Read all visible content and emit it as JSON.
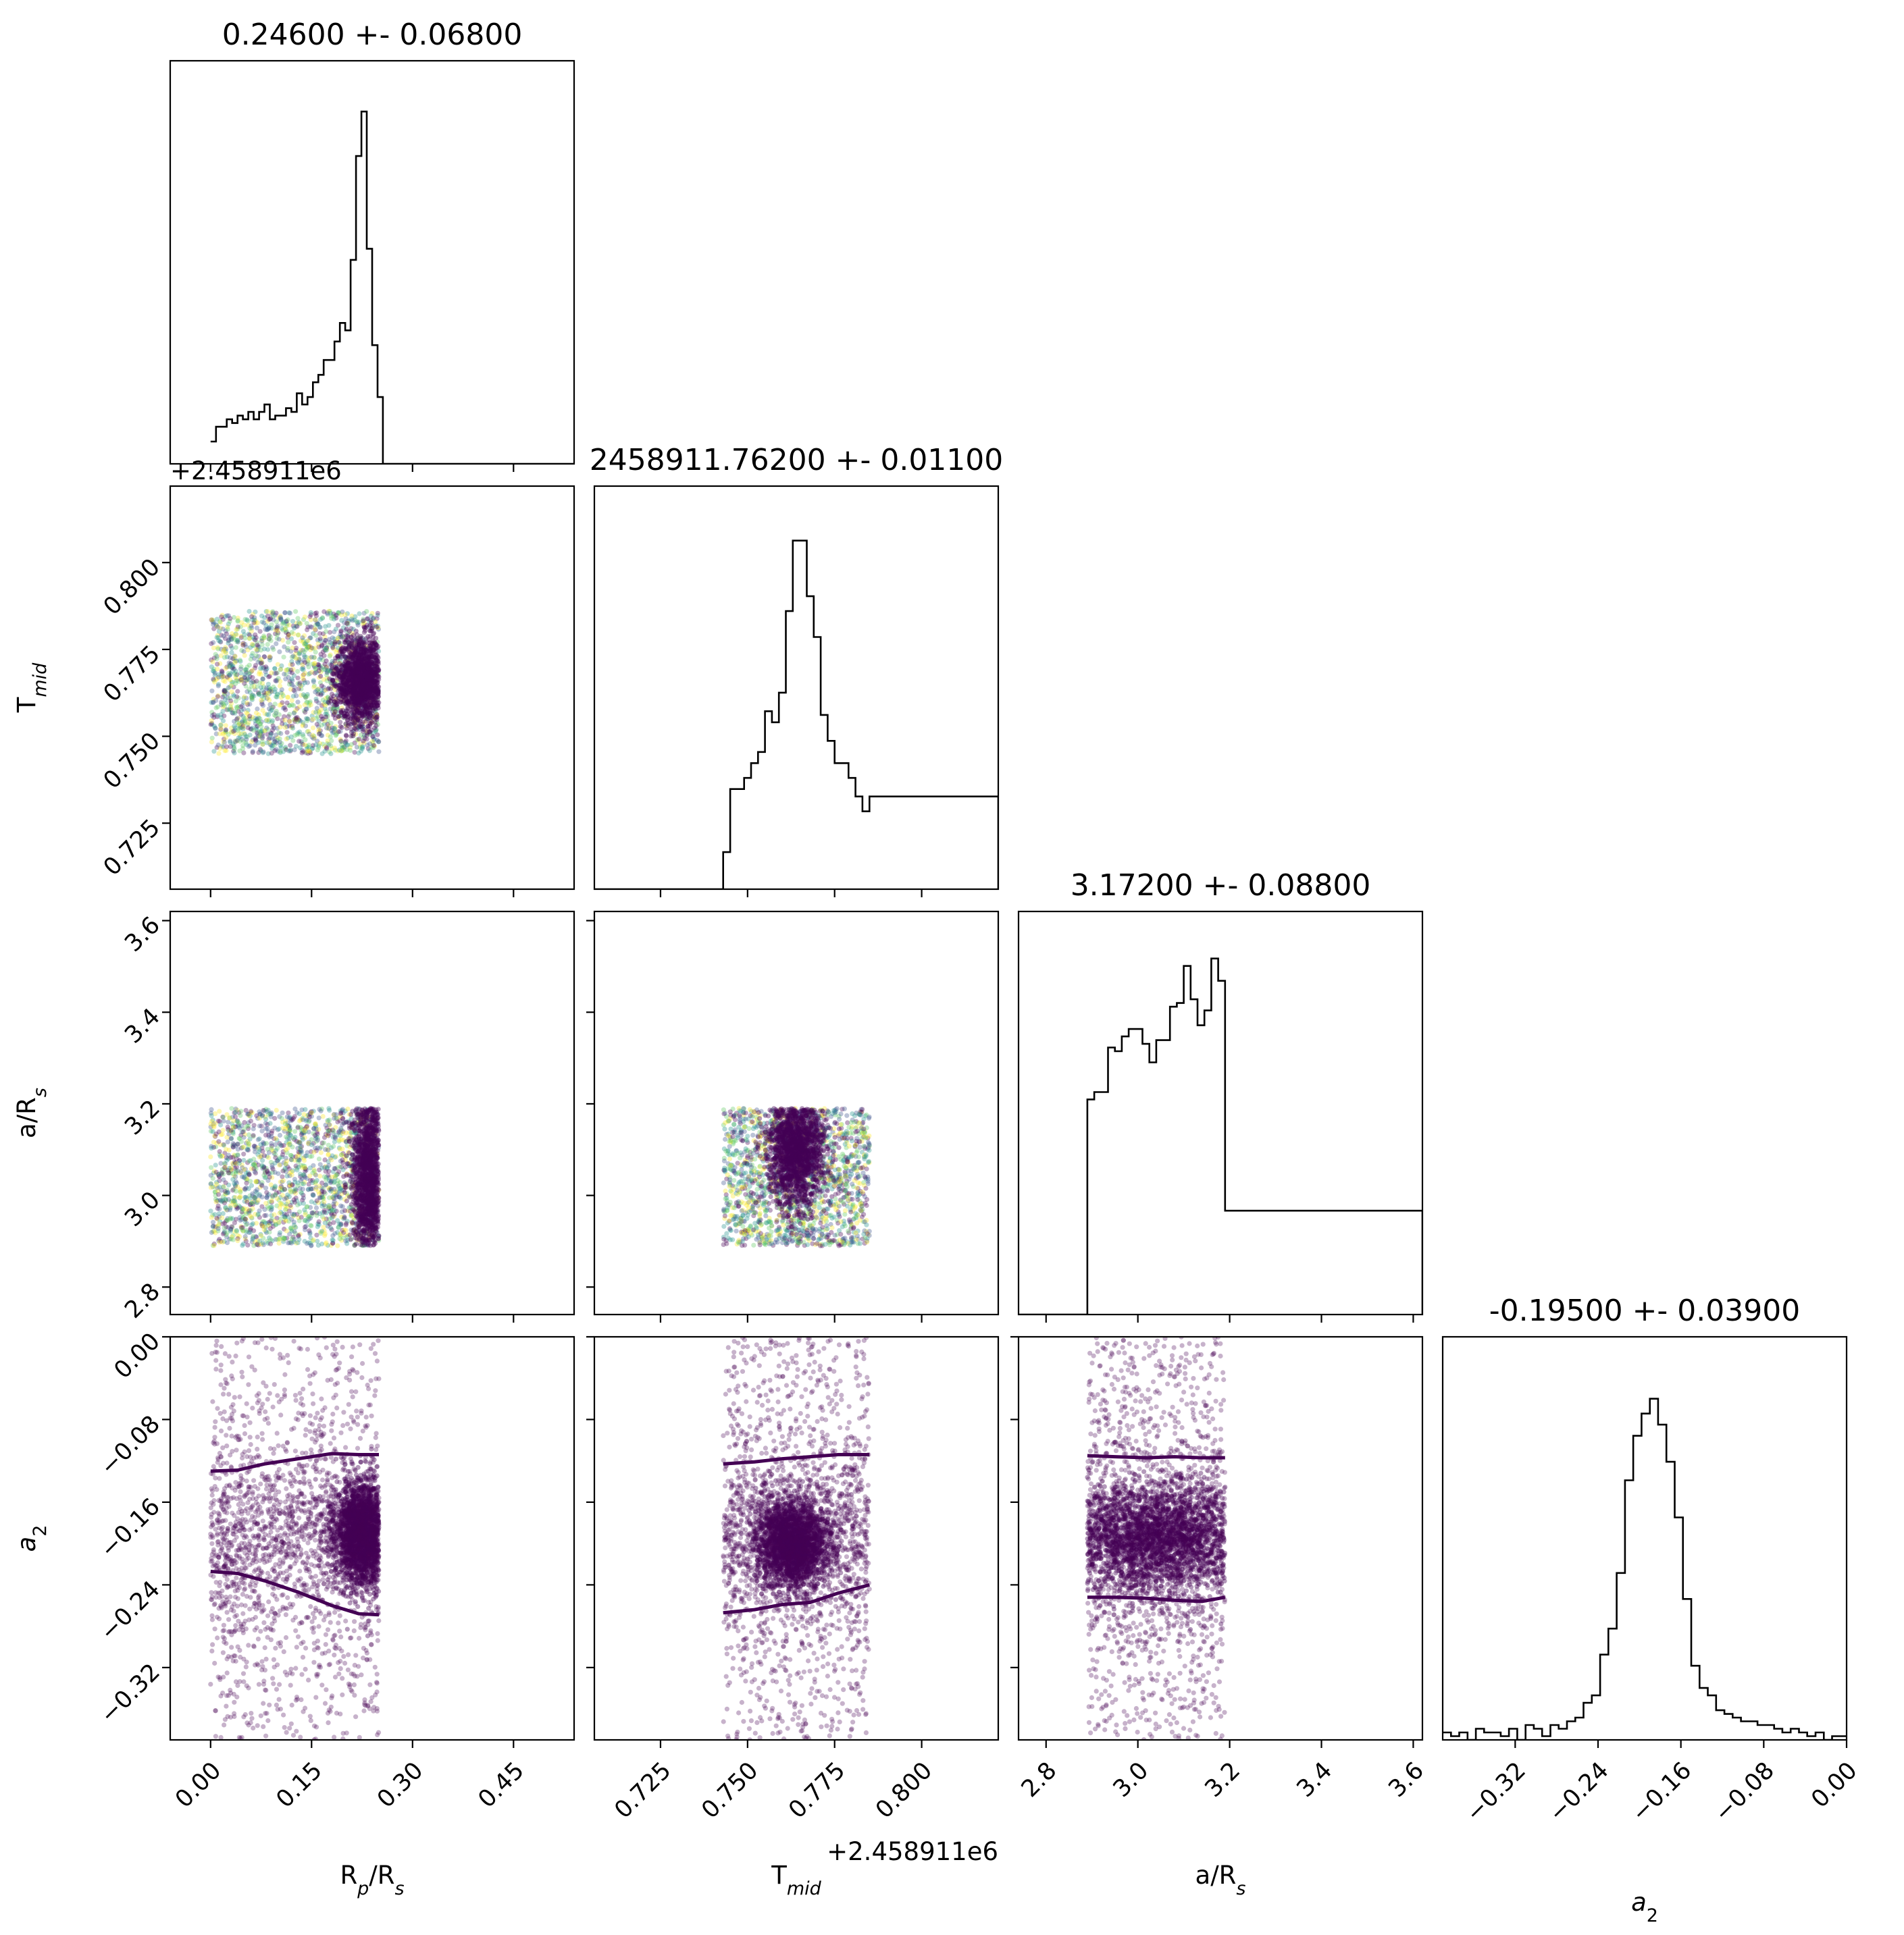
{
  "chart_data": {
    "type": "corner",
    "parameters": [
      {
        "key": "rprs",
        "label_main": "R",
        "label_sub1": "p",
        "label_mid": "/R",
        "label_sub2": "s",
        "range": [
          -0.06,
          0.54
        ],
        "ticks": [
          "0.00",
          "0.15",
          "0.30",
          "0.45"
        ],
        "tick_values": [
          0.0,
          0.15,
          0.3,
          0.45
        ]
      },
      {
        "key": "tmid",
        "label_main": "T",
        "label_sub1": "mid",
        "label_mid": "",
        "label_sub2": "",
        "range": [
          0.706,
          0.822
        ],
        "ticks": [
          "0.725",
          "0.750",
          "0.775",
          "0.800"
        ],
        "tick_values": [
          0.725,
          0.75,
          0.775,
          0.8
        ],
        "offset_text": "+2.458911e6"
      },
      {
        "key": "ars",
        "label_main": "a",
        "label_sub1": "",
        "label_mid": "/R",
        "label_sub2": "s",
        "range": [
          2.74,
          3.62
        ],
        "ticks": [
          "2.8",
          "3.0",
          "3.2",
          "3.4",
          "3.6"
        ],
        "tick_values": [
          2.8,
          3.0,
          3.2,
          3.4,
          3.6
        ]
      },
      {
        "key": "a2",
        "label_main": "a",
        "label_sub1": "2",
        "label_mid": "",
        "label_sub2": "",
        "range": [
          -0.39,
          0.0
        ],
        "ticks": [
          "−0.32",
          "−0.24",
          "−0.16",
          "−0.08",
          "0.00"
        ],
        "tick_values": [
          -0.32,
          -0.24,
          -0.16,
          -0.08,
          0.0
        ]
      }
    ],
    "titles": [
      "0.24600 +- 0.06800",
      "2458911.76200 +- 0.01100",
      "3.17200 +- 0.08800",
      "-0.19500 +- 0.03900"
    ],
    "y_offset_text": "+2.458911e6",
    "histograms": [
      {
        "param": "rprs",
        "bin_edges": [
          0.0,
          0.008,
          0.016,
          0.024,
          0.032,
          0.04,
          0.048,
          0.056,
          0.064,
          0.072,
          0.08,
          0.088,
          0.096,
          0.104,
          0.112,
          0.12,
          0.128,
          0.136,
          0.144,
          0.152,
          0.16,
          0.168,
          0.176,
          0.184,
          0.192,
          0.2,
          0.208,
          0.216,
          0.224,
          0.232,
          0.24,
          0.248,
          0.256,
          0.54
        ],
        "counts": [
          0.06,
          0.1,
          0.1,
          0.12,
          0.11,
          0.13,
          0.12,
          0.14,
          0.12,
          0.14,
          0.16,
          0.12,
          0.13,
          0.13,
          0.15,
          0.14,
          0.19,
          0.16,
          0.18,
          0.22,
          0.24,
          0.28,
          0.28,
          0.33,
          0.38,
          0.36,
          0.55,
          0.83,
          0.95,
          0.58,
          0.32,
          0.18,
          0.0
        ]
      },
      {
        "param": "tmid",
        "bin_edges": [
          0.706,
          0.743,
          0.745,
          0.747,
          0.749,
          0.751,
          0.753,
          0.755,
          0.757,
          0.759,
          0.761,
          0.763,
          0.765,
          0.767,
          0.769,
          0.771,
          0.773,
          0.775,
          0.777,
          0.779,
          0.781,
          0.783,
          0.785,
          0.822
        ],
        "counts": [
          0.0,
          0.1,
          0.27,
          0.27,
          0.3,
          0.34,
          0.37,
          0.48,
          0.45,
          0.53,
          0.75,
          0.94,
          0.94,
          0.79,
          0.68,
          0.47,
          0.4,
          0.34,
          0.34,
          0.3,
          0.25,
          0.21,
          0.25,
          0.0
        ]
      },
      {
        "param": "ars",
        "bin_edges": [
          2.74,
          2.89,
          2.905,
          2.92,
          2.935,
          2.95,
          2.965,
          2.98,
          2.995,
          3.01,
          3.025,
          3.04,
          3.055,
          3.07,
          3.085,
          3.1,
          3.115,
          3.13,
          3.145,
          3.16,
          3.175,
          3.19,
          3.62
        ],
        "counts": [
          0.0,
          0.58,
          0.6,
          0.6,
          0.72,
          0.71,
          0.75,
          0.77,
          0.77,
          0.73,
          0.68,
          0.74,
          0.74,
          0.83,
          0.84,
          0.94,
          0.85,
          0.78,
          0.82,
          0.96,
          0.9,
          0.28,
          0.0
        ]
      },
      {
        "param": "a2",
        "bin_edges": [
          -0.39,
          -0.382,
          -0.374,
          -0.366,
          -0.358,
          -0.35,
          -0.342,
          -0.334,
          -0.326,
          -0.318,
          -0.31,
          -0.302,
          -0.294,
          -0.286,
          -0.278,
          -0.27,
          -0.262,
          -0.254,
          -0.246,
          -0.238,
          -0.23,
          -0.222,
          -0.214,
          -0.206,
          -0.198,
          -0.19,
          -0.182,
          -0.174,
          -0.166,
          -0.158,
          -0.15,
          -0.142,
          -0.134,
          -0.126,
          -0.118,
          -0.11,
          -0.102,
          -0.094,
          -0.086,
          -0.078,
          -0.07,
          -0.062,
          -0.054,
          -0.046,
          -0.038,
          -0.03,
          -0.022,
          -0.014,
          -0.006,
          0.0
        ],
        "counts": [
          0.02,
          0.01,
          0.02,
          0.0,
          0.03,
          0.02,
          0.02,
          0.01,
          0.03,
          0.0,
          0.04,
          0.03,
          0.01,
          0.04,
          0.03,
          0.05,
          0.06,
          0.1,
          0.12,
          0.23,
          0.3,
          0.45,
          0.7,
          0.82,
          0.88,
          0.92,
          0.85,
          0.75,
          0.6,
          0.38,
          0.2,
          0.14,
          0.12,
          0.08,
          0.07,
          0.06,
          0.05,
          0.05,
          0.04,
          0.04,
          0.03,
          0.02,
          0.03,
          0.02,
          0.01,
          0.02,
          0.0,
          0.01,
          0.01
        ]
      }
    ],
    "scatter_panels": [
      {
        "x": "rprs",
        "y": "tmid",
        "x_range": [
          0.0,
          0.25
        ],
        "y_range": [
          0.745,
          0.786
        ],
        "dense": {
          "center_x": 0.225,
          "center_y": 0.766,
          "spread_x": 0.02,
          "spread_y": 0.006
        }
      },
      {
        "x": "rprs",
        "y": "ars",
        "x_range": [
          0.0,
          0.25
        ],
        "y_range": [
          2.89,
          3.19
        ],
        "dense": {
          "center_x": 0.235,
          "center_y": 3.04,
          "spread_x": 0.012,
          "spread_y": 0.1
        }
      },
      {
        "x": "tmid",
        "y": "ars",
        "x_range": [
          0.743,
          0.785
        ],
        "y_range": [
          2.89,
          3.19
        ],
        "dense": {
          "center_x": 0.764,
          "center_y": 3.1,
          "spread_x": 0.004,
          "spread_y": 0.06
        }
      },
      {
        "x": "rprs",
        "y": "a2",
        "x_range": [
          0.0,
          0.25
        ],
        "y_range": [
          -0.39,
          0.0
        ],
        "dense": {
          "center_x": 0.225,
          "center_y": -0.19,
          "spread_x": 0.02,
          "spread_y": 0.025
        },
        "upper_contour": [
          [
            0.0,
            -0.13
          ],
          [
            0.04,
            -0.129
          ],
          [
            0.08,
            -0.123
          ],
          [
            0.13,
            -0.118
          ],
          [
            0.18,
            -0.113
          ],
          [
            0.22,
            -0.114
          ],
          [
            0.25,
            -0.114
          ]
        ],
        "lower_contour": [
          [
            0.0,
            -0.227
          ],
          [
            0.04,
            -0.229
          ],
          [
            0.08,
            -0.236
          ],
          [
            0.13,
            -0.247
          ],
          [
            0.18,
            -0.26
          ],
          [
            0.22,
            -0.268
          ],
          [
            0.25,
            -0.269
          ]
        ]
      },
      {
        "x": "tmid",
        "y": "a2",
        "x_range": [
          0.743,
          0.785
        ],
        "y_range": [
          -0.39,
          0.0
        ],
        "dense": {
          "center_x": 0.763,
          "center_y": -0.2,
          "spread_x": 0.005,
          "spread_y": 0.02
        },
        "upper_contour": [
          [
            0.743,
            -0.123
          ],
          [
            0.752,
            -0.121
          ],
          [
            0.76,
            -0.118
          ],
          [
            0.768,
            -0.116
          ],
          [
            0.776,
            -0.114
          ],
          [
            0.785,
            -0.114
          ]
        ],
        "lower_contour": [
          [
            0.743,
            -0.267
          ],
          [
            0.752,
            -0.264
          ],
          [
            0.76,
            -0.259
          ],
          [
            0.768,
            -0.257
          ],
          [
            0.776,
            -0.248
          ],
          [
            0.785,
            -0.24
          ]
        ]
      },
      {
        "x": "ars",
        "y": "a2",
        "x_range": [
          2.89,
          3.19
        ],
        "y_range": [
          -0.39,
          0.0
        ],
        "dense": {
          "center_x": 3.04,
          "center_y": -0.195,
          "spread_x": 0.1,
          "spread_y": 0.025
        },
        "upper_contour": [
          [
            2.89,
            -0.115
          ],
          [
            2.95,
            -0.116
          ],
          [
            3.02,
            -0.117
          ],
          [
            3.08,
            -0.116
          ],
          [
            3.14,
            -0.117
          ],
          [
            3.19,
            -0.117
          ]
        ],
        "lower_contour": [
          [
            2.89,
            -0.252
          ],
          [
            2.95,
            -0.252
          ],
          [
            3.02,
            -0.253
          ],
          [
            3.08,
            -0.255
          ],
          [
            3.14,
            -0.256
          ],
          [
            3.19,
            -0.252
          ]
        ]
      }
    ],
    "point_colors": [
      "#440154",
      "#3b528b",
      "#21918c",
      "#5ec962",
      "#fde725"
    ],
    "contour_color": "#440154",
    "grid": false
  }
}
